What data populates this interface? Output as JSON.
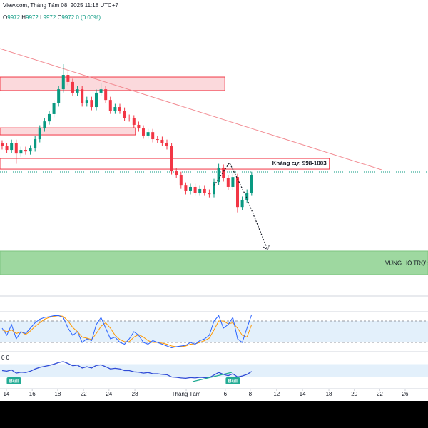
{
  "chart_data": {
    "type": "candlestick",
    "title": "View.com, Tháng Tám 08, 2025 11:18 UTC+7",
    "ohlc_legend": [
      {
        "label": "O",
        "value": "9972"
      },
      {
        "label": "H",
        "value": "9972"
      },
      {
        "label": "L",
        "value": "9972"
      },
      {
        "label": "C",
        "value": "9972"
      }
    ],
    "change": "0 (0.00%)",
    "up_color": "#089981",
    "down_color": "#f23645",
    "xlim": [
      -0.45,
      90.45
    ],
    "ylim": [
      947.7,
      1077
    ],
    "xticks": [
      {
        "value": 0.9,
        "label": "14"
      },
      {
        "value": 6.4,
        "label": "16"
      },
      {
        "value": 11.8,
        "label": "18"
      },
      {
        "value": 17.3,
        "label": "22"
      },
      {
        "value": 22.7,
        "label": "24"
      },
      {
        "value": 28.2,
        "label": "28"
      },
      {
        "value": 39.1,
        "label": "Tháng Tám"
      },
      {
        "value": 47.4,
        "label": "6"
      },
      {
        "value": 52.7,
        "label": "8"
      },
      {
        "value": 58.3,
        "label": "12"
      },
      {
        "value": 63.8,
        "label": "14"
      },
      {
        "value": 69.4,
        "label": "18"
      },
      {
        "value": 74.8,
        "label": "20"
      },
      {
        "value": 80.2,
        "label": "22"
      },
      {
        "value": 85.6,
        "label": "26"
      }
    ],
    "open": [
      1010,
      1008.7,
      1007,
      1010.3,
      1005.3,
      1007,
      1006.3,
      1007.7,
      1012,
      1017,
      1020.3,
      1023.7,
      1028.7,
      1035.3,
      1042,
      1038.7,
      1033.7,
      1035.3,
      1028.7,
      1030.3,
      1027,
      1033.7,
      1035.3,
      1030.3,
      1025.3,
      1027,
      1025.3,
      1022,
      1021.7,
      1018.7,
      1017,
      1013.7,
      1015.3,
      1012,
      1011.7,
      1010.3,
      1008.7,
      997,
      995.3,
      990.3,
      987.7,
      989.7,
      987,
      988.7,
      987,
      986.3,
      992,
      998.7,
      993.7,
      989.7,
      994.3,
      980.3,
      983.7,
      987
    ],
    "high": [
      1011.5,
      1010.2,
      1011.8,
      1011.8,
      1008.5,
      1008.5,
      1009.2,
      1013.5,
      1018.5,
      1021.8,
      1025.2,
      1030.2,
      1036.8,
      1047,
      1043.5,
      1040.2,
      1036.8,
      1036.8,
      1031.8,
      1031.8,
      1035.2,
      1038,
      1036.8,
      1031.8,
      1028.5,
      1028.5,
      1026.8,
      1023.5,
      1023.2,
      1020.2,
      1018.5,
      1016.8,
      1016.8,
      1013.5,
      1013.2,
      1011.8,
      1010.2,
      998.5,
      996.8,
      991.8,
      991.2,
      991.2,
      990.2,
      990.2,
      988.5,
      993.5,
      1000.5,
      1000.2,
      995.2,
      995.8,
      995.8,
      985.2,
      988.5,
      996.8
    ],
    "low": [
      1007.2,
      1005.5,
      1005.5,
      1000.5,
      1003.8,
      1004.8,
      1004.8,
      1006.2,
      1010.5,
      1015.5,
      1018.8,
      1022.2,
      1027.2,
      1033.8,
      1037.2,
      1032.2,
      1032.2,
      1027.2,
      1027.2,
      1025.5,
      1025.5,
      1032.2,
      1028.8,
      1023.8,
      1023.8,
      1023.8,
      1020.5,
      1020.2,
      1017.2,
      1015.5,
      1012.2,
      1012.2,
      1010.5,
      1010.2,
      1008.8,
      1007.2,
      995.5,
      993.8,
      988.8,
      986.2,
      986.2,
      985.5,
      985.5,
      985.5,
      984.8,
      984.8,
      990.5,
      992.2,
      988.2,
      988.2,
      977.8,
      978.8,
      982.2,
      985.5
    ],
    "close": [
      1008.7,
      1007,
      1010.3,
      1005.3,
      1007,
      1006.3,
      1007.7,
      1012,
      1017,
      1020.3,
      1023.7,
      1028.7,
      1035.3,
      1042,
      1038.7,
      1033.7,
      1035.3,
      1028.7,
      1030.3,
      1027,
      1033.7,
      1035.3,
      1030.3,
      1025.3,
      1027,
      1025.3,
      1022,
      1021.7,
      1018.7,
      1017,
      1013.7,
      1015.3,
      1012,
      1011.7,
      1010.3,
      1008.7,
      997,
      995.3,
      990.3,
      987.7,
      989.7,
      987,
      988.7,
      987,
      986.3,
      992,
      998.7,
      993.7,
      989.7,
      994.3,
      980.3,
      983.7,
      987,
      995.3
    ],
    "last_price": 996.7,
    "zones": [
      {
        "x": [
          -0.45,
          47.3
        ],
        "y": [
          1034.7,
          1041
        ],
        "fill": "#fbd9dc",
        "stroke": "#f23645"
      },
      {
        "x": [
          -0.45,
          28.3
        ],
        "y": [
          1014,
          1017.3
        ],
        "fill": "#fbd9dc",
        "stroke": "#f23645"
      },
      {
        "x": [
          -0.45,
          69.5
        ],
        "y": [
          998,
          1003
        ],
        "fill": "none",
        "stroke": "#f23645",
        "label": "Kháng cự: 998-1003"
      },
      {
        "x": [
          -0.45,
          90.45
        ],
        "y": [
          948.7,
          959.7
        ],
        "fill": "#9ed8a0",
        "stroke": "#7cc47f",
        "label": "VÙNG HỖ TRỢ :"
      }
    ],
    "trendline": {
      "x": [
        -0.45,
        80.6
      ],
      "y": [
        1054.3,
        997.7
      ],
      "color": "#f28b92"
    },
    "projection": {
      "x": [
        45,
        48.3,
        51.8,
        56.4
      ],
      "y": [
        990.3,
        1001,
        985.3,
        960.3
      ]
    },
    "stochastic": {
      "ylim": [
        0,
        100
      ],
      "levels": [
        80,
        20
      ],
      "k": {
        "color": "#2962ff",
        "values": [
          60,
          40,
          70,
          30,
          50,
          45,
          60,
          75,
          85,
          90,
          92,
          95,
          95,
          90,
          60,
          40,
          50,
          20,
          30,
          25,
          70,
          90,
          60,
          30,
          35,
          20,
          15,
          30,
          50,
          40,
          20,
          15,
          25,
          20,
          15,
          10,
          5,
          8,
          10,
          12,
          20,
          15,
          25,
          30,
          40,
          80,
          95,
          60,
          70,
          90,
          30,
          20,
          60,
          98
        ]
      },
      "d": {
        "color": "#ff9800",
        "values": [
          55,
          50,
          55,
          45,
          50,
          42,
          52,
          65,
          75,
          85,
          90,
          93,
          95,
          93,
          80,
          62,
          50,
          35,
          32,
          28,
          45,
          65,
          75,
          60,
          40,
          28,
          22,
          22,
          35,
          42,
          35,
          25,
          20,
          20,
          18,
          15,
          10,
          8,
          8,
          10,
          15,
          16,
          20,
          25,
          32,
          55,
          80,
          80,
          72,
          75,
          60,
          40,
          35,
          70
        ]
      }
    },
    "rsi": {
      "header": "0 0",
      "ylim": [
        0,
        100
      ],
      "band": [
        30,
        70
      ],
      "color": "#2f4bd6",
      "values": [
        50,
        48,
        52,
        42,
        45,
        44,
        48,
        55,
        60,
        63,
        66,
        70,
        75,
        78,
        72,
        65,
        67,
        58,
        62,
        58,
        66,
        68,
        62,
        55,
        57,
        55,
        50,
        50,
        46,
        45,
        42,
        44,
        40,
        40,
        38,
        37,
        30,
        29,
        27,
        26,
        28,
        27,
        29,
        28,
        28,
        36,
        44,
        38,
        34,
        40,
        30,
        33,
        38,
        47
      ],
      "signals": [
        {
          "x": 2.5,
          "label": "Bull"
        },
        {
          "x": 49,
          "label": "Bull"
        }
      ]
    }
  }
}
